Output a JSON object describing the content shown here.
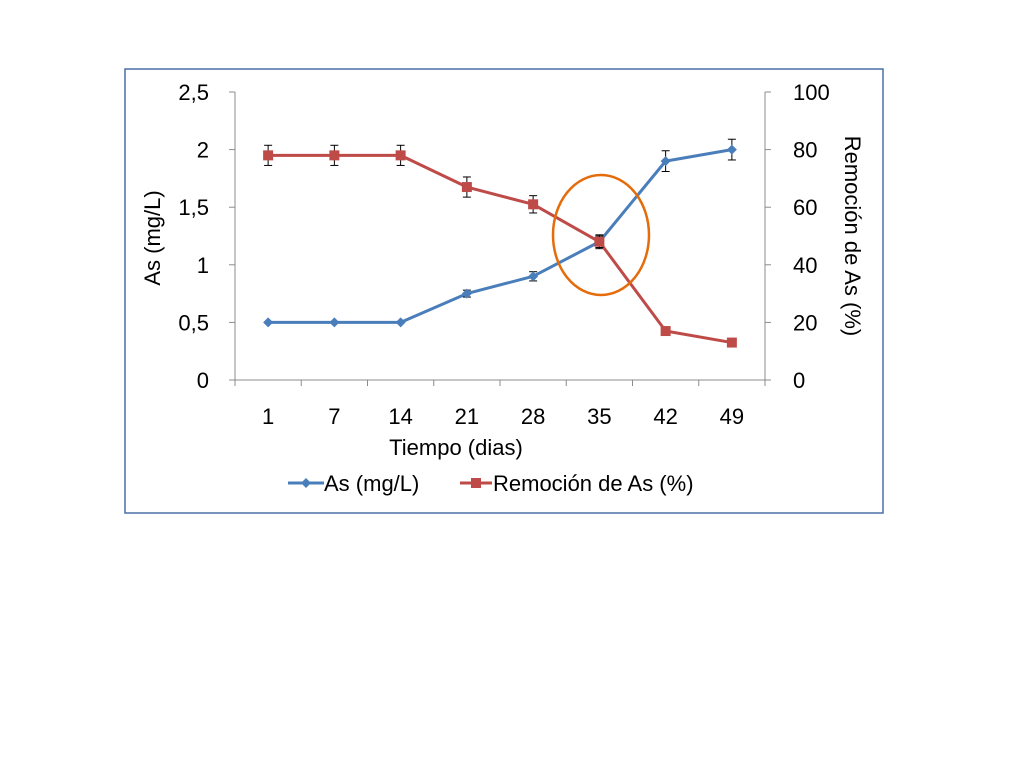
{
  "chart_data": {
    "type": "line",
    "categories": [
      "1",
      "7",
      "14",
      "21",
      "28",
      "35",
      "42",
      "49"
    ],
    "xlabel": "Tiempo (dias)",
    "ylabel": "As (mg/L)",
    "y2label": "Remoción de As (%)",
    "ylim": [
      0,
      2.5
    ],
    "y2lim": [
      0,
      100
    ],
    "y_ticks": [
      "0",
      "0,5",
      "1",
      "1,5",
      "2",
      "2,5"
    ],
    "y2_ticks": [
      "0",
      "20",
      "40",
      "60",
      "80",
      "100"
    ],
    "legend_position": "bottom",
    "grid": false,
    "series": [
      {
        "name": "As (mg/L)",
        "axis": "left",
        "color": "#4A7EBB",
        "marker": "diamond",
        "values": [
          0.5,
          0.5,
          0.5,
          0.75,
          0.9,
          1.2,
          1.9,
          2.0
        ],
        "errors": [
          0,
          0,
          0,
          0.03,
          0.04,
          0.06,
          0.09,
          0.09
        ]
      },
      {
        "name": "Remoción de As (%)",
        "axis": "right",
        "color": "#BE4B48",
        "marker": "square",
        "values": [
          78,
          78,
          78,
          67,
          61,
          48,
          17,
          13
        ],
        "errors": [
          3.5,
          3.5,
          3.5,
          3.5,
          3,
          2,
          0,
          0
        ]
      }
    ],
    "annotation": {
      "shape": "ellipse",
      "color": "#E46C0A",
      "around_category": "35"
    },
    "frame_color": "#4A6FA5"
  }
}
